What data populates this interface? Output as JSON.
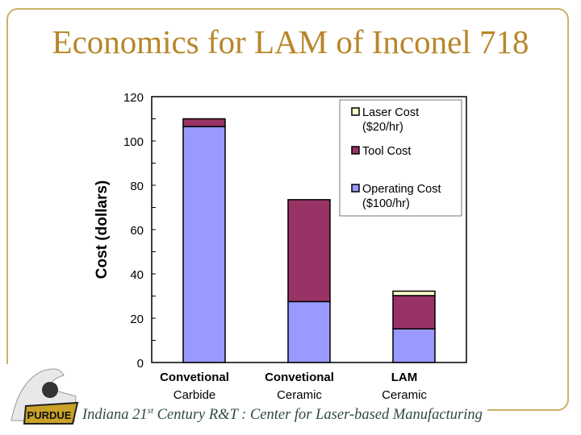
{
  "slide": {
    "title": "Economics for LAM of Inconel 718",
    "footer_pre": "Indiana 21",
    "footer_sup": "st",
    "footer_post": " Century R&T :  Center for Laser-based Manufacturing",
    "logo_text": "PURDUE"
  },
  "chart_data": {
    "type": "bar",
    "stacked": true,
    "title": "",
    "xlabel": "",
    "ylabel": "Cost (dollars)",
    "ylim": [
      0,
      120
    ],
    "yticks": [
      0,
      20,
      40,
      60,
      80,
      100,
      120
    ],
    "categories": [
      {
        "line1": "Convetional",
        "line2": "Carbide"
      },
      {
        "line1": "Convetional",
        "line2": "Ceramic"
      },
      {
        "line1": "LAM",
        "line2": "Ceramic"
      }
    ],
    "series": [
      {
        "name": "Operating Cost",
        "name2": "($100/hr)",
        "color": "#9999ff",
        "values": [
          106.5,
          27.5,
          15.2
        ]
      },
      {
        "name": "Tool Cost",
        "name2": "",
        "color": "#993366",
        "values": [
          3.5,
          46,
          15
        ]
      },
      {
        "name": "Laser Cost",
        "name2": "($20/hr)",
        "color": "#ffffcc",
        "values": [
          0,
          0,
          2
        ]
      }
    ],
    "legend_order": [
      2,
      1,
      0
    ],
    "legend_position": "top-right",
    "grid": false
  }
}
